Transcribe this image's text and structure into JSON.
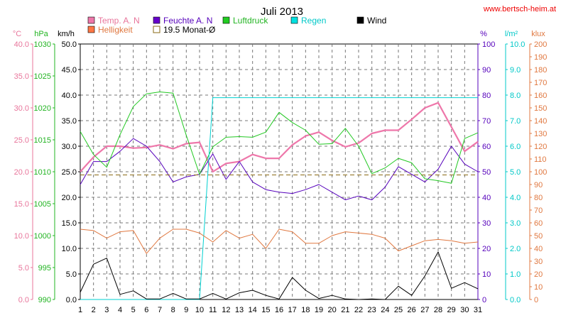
{
  "chart_data": {
    "type": "line",
    "title": "Juli 2013",
    "source_link": "www.bertsch-heim.at",
    "x": [
      1,
      2,
      3,
      4,
      5,
      6,
      7,
      8,
      9,
      10,
      11,
      12,
      13,
      14,
      15,
      16,
      17,
      18,
      19,
      20,
      21,
      22,
      23,
      24,
      25,
      26,
      27,
      28,
      29,
      30,
      31
    ],
    "xlim": [
      1,
      31
    ],
    "axes": [
      {
        "id": "temp",
        "unit": "°C",
        "side": "left",
        "range": [
          0,
          40
        ],
        "step": 5,
        "decimals": 1,
        "color": "#e8759b"
      },
      {
        "id": "hpa",
        "unit": "hPa",
        "side": "left",
        "range": [
          990,
          1030
        ],
        "step": 5,
        "decimals": 0,
        "color": "#22b422"
      },
      {
        "id": "kmh",
        "unit": "km/h",
        "side": "left",
        "range": [
          0,
          50
        ],
        "step": 5,
        "decimals": 1,
        "color": "#000000"
      },
      {
        "id": "pct",
        "unit": "%",
        "side": "right",
        "range": [
          0,
          100
        ],
        "step": 10,
        "decimals": 0,
        "color": "#5500bb"
      },
      {
        "id": "lm2",
        "unit": "l/m²",
        "side": "right",
        "range": [
          0,
          10
        ],
        "step": 1,
        "decimals": 1,
        "color": "#00c8c8"
      },
      {
        "id": "klux",
        "unit": "klux",
        "side": "right",
        "range": [
          0,
          200
        ],
        "step": 10,
        "decimals": 0,
        "color": "#e07840"
      }
    ],
    "series": [
      {
        "name": "Temp. A. N",
        "axis": "temp",
        "color": "#ee77aa",
        "width": 2.2,
        "legend_swatch": "#ee77aa",
        "values": [
          20.0,
          22.3,
          24.0,
          24.0,
          23.7,
          23.8,
          24.2,
          23.6,
          24.4,
          24.6,
          20.0,
          21.3,
          21.6,
          22.7,
          22.1,
          22.1,
          24.2,
          25.6,
          26.2,
          24.9,
          23.9,
          24.5,
          26.0,
          26.5,
          26.5,
          28.2,
          30.0,
          30.8,
          27.0,
          23.2,
          24.7
        ]
      },
      {
        "name": "Feuchte A. N",
        "axis": "pct",
        "color": "#5500bb",
        "width": 1,
        "legend_swatch": "#6600cc",
        "values": [
          45,
          54,
          54,
          58,
          63,
          60,
          54,
          46,
          48,
          49,
          57,
          47,
          54,
          46,
          43,
          42,
          41.5,
          43,
          45,
          42,
          39,
          40.5,
          39,
          44,
          52,
          49,
          46,
          51,
          60,
          53,
          50
        ]
      },
      {
        "name": "Luftdruck",
        "axis": "hpa",
        "color": "#22c822",
        "width": 1,
        "legend_swatch": "#22cc22",
        "values": [
          1016.3,
          1012.7,
          1010.7,
          1015.8,
          1020.2,
          1022.2,
          1022.5,
          1022.3,
          1015.7,
          1009.6,
          1013.9,
          1015.4,
          1015.5,
          1015.4,
          1016.2,
          1019.3,
          1017.7,
          1016.5,
          1014.3,
          1014.4,
          1016.8,
          1014.0,
          1009.7,
          1010.6,
          1012.1,
          1011.4,
          1008.9,
          1008.6,
          1008.2,
          1015.2,
          1016.1
        ]
      },
      {
        "name": "Regen",
        "axis": "lm2",
        "color": "#00d0d0",
        "width": 1,
        "legend_swatch": "#00e0e0",
        "step_to": 11,
        "values": [
          0,
          0,
          0,
          0,
          0,
          0,
          0,
          0,
          0,
          0,
          7.9,
          7.9,
          7.9,
          7.9,
          7.9,
          7.9,
          7.9,
          7.9,
          7.9,
          7.9,
          7.9,
          7.9,
          7.9,
          7.9,
          7.9,
          7.9,
          7.9,
          7.9,
          7.9,
          7.9,
          7.9
        ]
      },
      {
        "name": "Wind",
        "axis": "kmh",
        "color": "#000000",
        "width": 1,
        "legend_swatch": "#000000",
        "values": [
          1.4,
          6.9,
          8.1,
          1.0,
          1.7,
          0.1,
          0.1,
          1.2,
          0.1,
          0.1,
          1.2,
          0.1,
          1.3,
          1.8,
          0.8,
          0.1,
          4.3,
          1.8,
          0.2,
          0.8,
          0.1,
          0.0,
          0.1,
          0.0,
          2.6,
          0.8,
          4.6,
          9.3,
          2.2,
          3.3,
          2.1
        ]
      },
      {
        "name": "Helligkeit",
        "axis": "klux",
        "color": "#e07840",
        "width": 1,
        "legend_swatch": "#ff7744",
        "values": [
          55,
          54,
          48,
          53,
          54,
          36,
          48,
          55,
          55,
          52,
          45,
          54,
          48,
          51,
          40,
          55,
          53,
          44,
          44,
          50,
          53,
          52,
          51,
          48,
          38,
          42,
          46,
          47,
          46,
          44,
          45
        ]
      },
      {
        "name": "19.5 Monat-Ø",
        "axis": "temp",
        "color": "#8a6a14",
        "width": 1,
        "dash": "6,4",
        "legend_swatch": "hollow",
        "values": [
          19.5,
          19.5,
          19.5,
          19.5,
          19.5,
          19.5,
          19.5,
          19.5,
          19.5,
          19.5,
          19.5,
          19.5,
          19.5,
          19.5,
          19.5,
          19.5,
          19.5,
          19.5,
          19.5,
          19.5,
          19.5,
          19.5,
          19.5,
          19.5,
          19.5,
          19.5,
          19.5,
          19.5,
          19.5,
          19.5,
          19.5
        ]
      }
    ],
    "legend_order": [
      "Temp. A. N",
      "Feuchte A. N",
      "Luftdruck",
      "Regen",
      "Wind",
      "Helligkeit",
      "19.5 Monat-Ø"
    ],
    "legend_placement": "top",
    "grid": true,
    "grid_color": "#777777"
  }
}
